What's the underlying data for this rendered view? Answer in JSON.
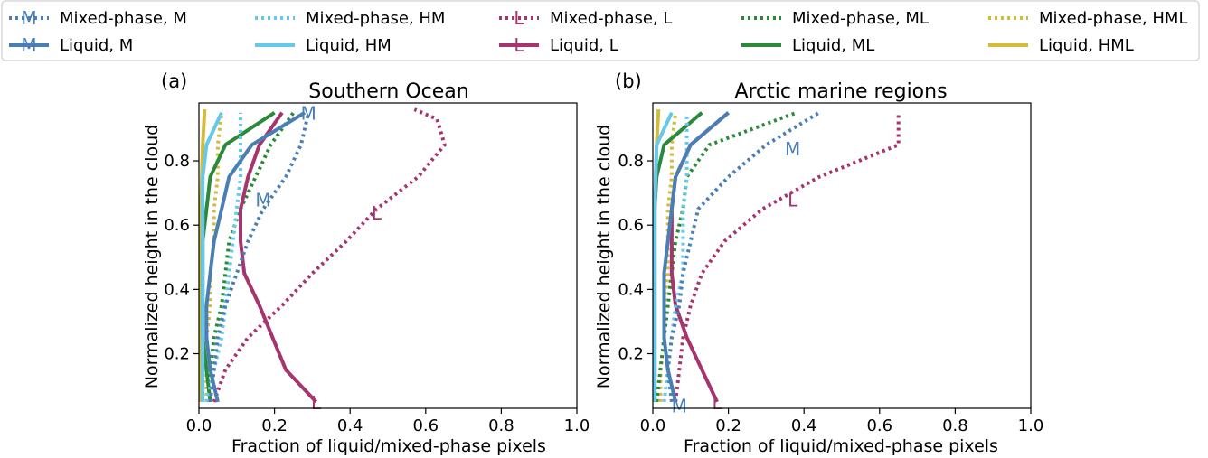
{
  "colors": {
    "M": "#4a7fb5",
    "HM": "#66c8ea",
    "L": "#a6346f",
    "ML": "#2a8a3a",
    "HML": "#d5bb3a"
  },
  "legend": {
    "placement": "top",
    "entries": [
      {
        "label": "Mixed-phase, M",
        "group": "M",
        "style": "dotted",
        "marker": "M"
      },
      {
        "label": "Liquid, M",
        "group": "M",
        "style": "solid",
        "marker": "M"
      },
      {
        "label": "Mixed-phase, HM",
        "group": "HM",
        "style": "dotted",
        "marker": ""
      },
      {
        "label": "Liquid, HM",
        "group": "HM",
        "style": "solid",
        "marker": ""
      },
      {
        "label": "Mixed-phase, L",
        "group": "L",
        "style": "dotted",
        "marker": "L"
      },
      {
        "label": "Liquid, L",
        "group": "L",
        "style": "solid",
        "marker": "L"
      },
      {
        "label": "Mixed-phase, ML",
        "group": "ML",
        "style": "dotted",
        "marker": ""
      },
      {
        "label": "Liquid, ML",
        "group": "ML",
        "style": "solid",
        "marker": ""
      },
      {
        "label": "Mixed-phase, HML",
        "group": "HML",
        "style": "dotted",
        "marker": ""
      },
      {
        "label": "Liquid, HML",
        "group": "HML",
        "style": "solid",
        "marker": ""
      }
    ]
  },
  "chart_data": [
    {
      "type": "line",
      "panel_label": "(a)",
      "title": "Southern Ocean",
      "xlabel": "Fraction of liquid/mixed-phase pixels",
      "ylabel": "Normalized height in the cloud",
      "xlim": [
        0,
        1
      ],
      "ylim": [
        0.03,
        0.98
      ],
      "xticks": [
        "0.0",
        "0.2",
        "0.4",
        "0.6",
        "0.8",
        "1.0"
      ],
      "yticks": [
        "0.2",
        "0.4",
        "0.6",
        "0.8"
      ],
      "series": [
        {
          "name": "Mixed-phase, M",
          "group": "M",
          "style": "dotted",
          "points": [
            [
              0.03,
              0.05
            ],
            [
              0.04,
              0.15
            ],
            [
              0.05,
              0.25
            ],
            [
              0.07,
              0.35
            ],
            [
              0.1,
              0.45
            ],
            [
              0.13,
              0.55
            ],
            [
              0.17,
              0.65
            ],
            [
              0.23,
              0.75
            ],
            [
              0.27,
              0.85
            ],
            [
              0.29,
              0.95
            ]
          ],
          "markers": [
            [
              0.17,
              0.68
            ],
            [
              0.29,
              0.95
            ]
          ]
        },
        {
          "name": "Liquid, M",
          "group": "M",
          "style": "solid",
          "points": [
            [
              0.05,
              0.05
            ],
            [
              0.03,
              0.15
            ],
            [
              0.02,
              0.25
            ],
            [
              0.02,
              0.35
            ],
            [
              0.03,
              0.45
            ],
            [
              0.04,
              0.55
            ],
            [
              0.06,
              0.65
            ],
            [
              0.08,
              0.75
            ],
            [
              0.14,
              0.85
            ],
            [
              0.28,
              0.95
            ]
          ],
          "markers": []
        },
        {
          "name": "Mixed-phase, HM",
          "group": "HM",
          "style": "dotted",
          "points": [
            [
              0.02,
              0.05
            ],
            [
              0.04,
              0.15
            ],
            [
              0.06,
              0.25
            ],
            [
              0.07,
              0.35
            ],
            [
              0.08,
              0.45
            ],
            [
              0.09,
              0.55
            ],
            [
              0.1,
              0.65
            ],
            [
              0.11,
              0.75
            ],
            [
              0.11,
              0.85
            ],
            [
              0.11,
              0.95
            ]
          ],
          "markers": []
        },
        {
          "name": "Liquid, HM",
          "group": "HM",
          "style": "solid",
          "points": [
            [
              0.01,
              0.05
            ],
            [
              0.01,
              0.15
            ],
            [
              0.01,
              0.25
            ],
            [
              0.01,
              0.35
            ],
            [
              0.01,
              0.45
            ],
            [
              0.01,
              0.55
            ],
            [
              0.01,
              0.65
            ],
            [
              0.01,
              0.75
            ],
            [
              0.02,
              0.85
            ],
            [
              0.06,
              0.95
            ]
          ],
          "markers": []
        },
        {
          "name": "Mixed-phase, L",
          "group": "L",
          "style": "dotted",
          "points": [
            [
              0.04,
              0.05
            ],
            [
              0.07,
              0.15
            ],
            [
              0.13,
              0.25
            ],
            [
              0.22,
              0.35
            ],
            [
              0.3,
              0.45
            ],
            [
              0.39,
              0.55
            ],
            [
              0.47,
              0.65
            ],
            [
              0.58,
              0.75
            ],
            [
              0.65,
              0.85
            ],
            [
              0.63,
              0.93
            ],
            [
              0.57,
              0.96
            ]
          ],
          "markers": [
            [
              0.47,
              0.64
            ]
          ]
        },
        {
          "name": "Liquid, L",
          "group": "L",
          "style": "solid",
          "points": [
            [
              0.31,
              0.05
            ],
            [
              0.23,
              0.15
            ],
            [
              0.16,
              0.35
            ],
            [
              0.12,
              0.45
            ],
            [
              0.11,
              0.55
            ],
            [
              0.11,
              0.65
            ],
            [
              0.13,
              0.75
            ],
            [
              0.16,
              0.85
            ],
            [
              0.22,
              0.95
            ]
          ],
          "markers": [
            [
              0.31,
              0.05
            ]
          ]
        },
        {
          "name": "Mixed-phase, ML",
          "group": "ML",
          "style": "dotted",
          "points": [
            [
              0.03,
              0.05
            ],
            [
              0.03,
              0.15
            ],
            [
              0.04,
              0.25
            ],
            [
              0.06,
              0.35
            ],
            [
              0.07,
              0.45
            ],
            [
              0.08,
              0.55
            ],
            [
              0.11,
              0.65
            ],
            [
              0.15,
              0.75
            ],
            [
              0.19,
              0.85
            ],
            [
              0.25,
              0.95
            ]
          ],
          "markers": []
        },
        {
          "name": "Liquid, ML",
          "group": "ML",
          "style": "solid",
          "points": [
            [
              0.03,
              0.05
            ],
            [
              0.02,
              0.15
            ],
            [
              0.01,
              0.25
            ],
            [
              0.01,
              0.35
            ],
            [
              0.01,
              0.45
            ],
            [
              0.01,
              0.55
            ],
            [
              0.02,
              0.65
            ],
            [
              0.03,
              0.75
            ],
            [
              0.07,
              0.85
            ],
            [
              0.2,
              0.95
            ]
          ],
          "markers": []
        },
        {
          "name": "Mixed-phase, HML",
          "group": "HML",
          "style": "dotted",
          "points": [
            [
              0.02,
              0.05
            ],
            [
              0.02,
              0.15
            ],
            [
              0.02,
              0.25
            ],
            [
              0.03,
              0.35
            ],
            [
              0.03,
              0.45
            ],
            [
              0.04,
              0.55
            ],
            [
              0.04,
              0.65
            ],
            [
              0.05,
              0.75
            ],
            [
              0.05,
              0.85
            ],
            [
              0.06,
              0.95
            ]
          ],
          "markers": []
        },
        {
          "name": "Liquid, HML",
          "group": "HML",
          "style": "solid",
          "points": [
            [
              0.005,
              0.05
            ],
            [
              0.005,
              0.35
            ],
            [
              0.005,
              0.65
            ],
            [
              0.01,
              0.85
            ],
            [
              0.015,
              0.96
            ]
          ],
          "markers": []
        }
      ]
    },
    {
      "type": "line",
      "panel_label": "(b)",
      "title": "Arctic marine regions",
      "xlabel": "Fraction of liquid/mixed-phase pixels",
      "ylabel": "Normalized height in the cloud",
      "xlim": [
        0,
        1
      ],
      "ylim": [
        0.03,
        0.98
      ],
      "xticks": [
        "0.0",
        "0.2",
        "0.4",
        "0.6",
        "0.8",
        "1.0"
      ],
      "yticks": [
        "0.2",
        "0.4",
        "0.6",
        "0.8"
      ],
      "series": [
        {
          "name": "Mixed-phase, M",
          "group": "M",
          "style": "dotted",
          "points": [
            [
              0.05,
              0.05
            ],
            [
              0.04,
              0.15
            ],
            [
              0.05,
              0.25
            ],
            [
              0.07,
              0.35
            ],
            [
              0.08,
              0.45
            ],
            [
              0.1,
              0.55
            ],
            [
              0.12,
              0.65
            ],
            [
              0.2,
              0.75
            ],
            [
              0.3,
              0.85
            ],
            [
              0.44,
              0.95
            ]
          ],
          "markers": [
            [
              0.07,
              0.04
            ],
            [
              0.37,
              0.84
            ]
          ]
        },
        {
          "name": "Liquid, M",
          "group": "M",
          "style": "solid",
          "points": [
            [
              0.06,
              0.05
            ],
            [
              0.04,
              0.15
            ],
            [
              0.03,
              0.25
            ],
            [
              0.03,
              0.35
            ],
            [
              0.03,
              0.45
            ],
            [
              0.04,
              0.55
            ],
            [
              0.05,
              0.65
            ],
            [
              0.06,
              0.75
            ],
            [
              0.1,
              0.85
            ],
            [
              0.2,
              0.95
            ]
          ],
          "markers": []
        },
        {
          "name": "Mixed-phase, HM",
          "group": "HM",
          "style": "dotted",
          "points": [
            [
              0.03,
              0.05
            ],
            [
              0.04,
              0.15
            ],
            [
              0.05,
              0.25
            ],
            [
              0.06,
              0.35
            ],
            [
              0.08,
              0.45
            ],
            [
              0.08,
              0.55
            ],
            [
              0.08,
              0.65
            ],
            [
              0.09,
              0.75
            ],
            [
              0.09,
              0.85
            ],
            [
              0.09,
              0.95
            ]
          ],
          "markers": []
        },
        {
          "name": "Liquid, HM",
          "group": "HM",
          "style": "solid",
          "points": [
            [
              0.005,
              0.05
            ],
            [
              0.005,
              0.35
            ],
            [
              0.005,
              0.65
            ],
            [
              0.01,
              0.85
            ],
            [
              0.05,
              0.95
            ]
          ],
          "markers": []
        },
        {
          "name": "Mixed-phase, L",
          "group": "L",
          "style": "dotted",
          "points": [
            [
              0.06,
              0.05
            ],
            [
              0.07,
              0.15
            ],
            [
              0.08,
              0.25
            ],
            [
              0.1,
              0.35
            ],
            [
              0.13,
              0.45
            ],
            [
              0.19,
              0.55
            ],
            [
              0.29,
              0.65
            ],
            [
              0.44,
              0.75
            ],
            [
              0.65,
              0.85
            ],
            [
              0.65,
              0.95
            ]
          ],
          "markers": [
            [
              0.37,
              0.68
            ]
          ]
        },
        {
          "name": "Liquid, L",
          "group": "L",
          "style": "solid",
          "points": [
            [
              0.17,
              0.05
            ],
            [
              0.13,
              0.15
            ],
            [
              0.09,
              0.25
            ],
            [
              0.06,
              0.35
            ],
            [
              0.05,
              0.45
            ],
            [
              0.05,
              0.55
            ],
            [
              0.05,
              0.65
            ],
            [
              0.06,
              0.75
            ],
            [
              0.1,
              0.85
            ],
            [
              0.2,
              0.95
            ]
          ],
          "markers": [
            [
              0.17,
              0.05
            ]
          ]
        },
        {
          "name": "Mixed-phase, ML",
          "group": "ML",
          "style": "dotted",
          "points": [
            [
              0.01,
              0.05
            ],
            [
              0.02,
              0.15
            ],
            [
              0.03,
              0.25
            ],
            [
              0.04,
              0.35
            ],
            [
              0.05,
              0.45
            ],
            [
              0.06,
              0.55
            ],
            [
              0.08,
              0.65
            ],
            [
              0.09,
              0.75
            ],
            [
              0.15,
              0.85
            ],
            [
              0.38,
              0.95
            ]
          ],
          "markers": []
        },
        {
          "name": "Liquid, ML",
          "group": "ML",
          "style": "solid",
          "points": [
            [
              0.005,
              0.05
            ],
            [
              0.005,
              0.35
            ],
            [
              0.005,
              0.65
            ],
            [
              0.01,
              0.75
            ],
            [
              0.03,
              0.85
            ],
            [
              0.13,
              0.95
            ]
          ],
          "markers": []
        },
        {
          "name": "Mixed-phase, HML",
          "group": "HML",
          "style": "dotted",
          "points": [
            [
              0.02,
              0.05
            ],
            [
              0.02,
              0.15
            ],
            [
              0.03,
              0.25
            ],
            [
              0.03,
              0.35
            ],
            [
              0.04,
              0.45
            ],
            [
              0.04,
              0.55
            ],
            [
              0.04,
              0.65
            ],
            [
              0.05,
              0.75
            ],
            [
              0.05,
              0.85
            ],
            [
              0.06,
              0.95
            ]
          ],
          "markers": []
        },
        {
          "name": "Liquid, HML",
          "group": "HML",
          "style": "solid",
          "points": [
            [
              0.005,
              0.05
            ],
            [
              0.005,
              0.35
            ],
            [
              0.005,
              0.65
            ],
            [
              0.01,
              0.85
            ],
            [
              0.015,
              0.96
            ]
          ],
          "markers": []
        }
      ]
    }
  ]
}
